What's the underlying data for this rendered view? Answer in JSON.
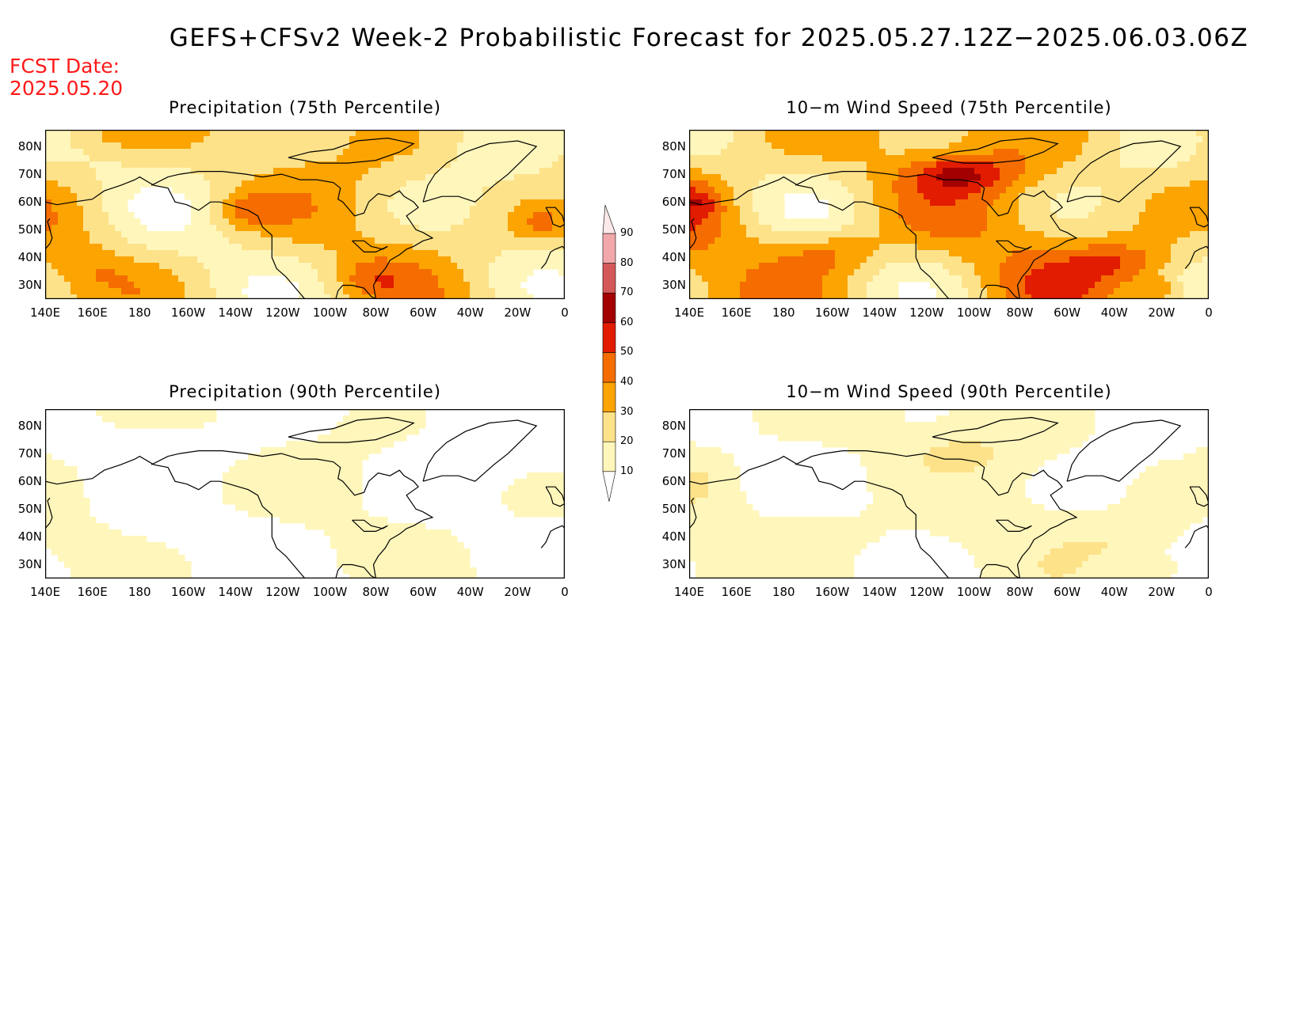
{
  "title": "GEFS+CFSv2 Week-2 Probabilistic Forecast for 2025.05.27.12Z−2025.06.03.06Z",
  "fcst_label": "FCST Date:",
  "fcst_date": "2025.05.20",
  "panels": [
    {
      "title": "Precipitation (75th Percentile)",
      "intensity": 1.0,
      "variant": "precip"
    },
    {
      "title": "10−m Wind Speed (75th Percentile)",
      "intensity": 1.2,
      "variant": "wind"
    },
    {
      "title": "Precipitation (90th Percentile)",
      "intensity": 0.35,
      "variant": "precip"
    },
    {
      "title": "10−m Wind Speed (90th Percentile)",
      "intensity": 0.45,
      "variant": "wind"
    }
  ],
  "lon_ticks": [
    "140E",
    "160E",
    "180",
    "160W",
    "140W",
    "120W",
    "100W",
    "80W",
    "60W",
    "40W",
    "20W",
    "0"
  ],
  "lat_ticks": [
    "80N",
    "70N",
    "60N",
    "50N",
    "40N",
    "30N"
  ],
  "colorbar": {
    "levels": [
      "10",
      "20",
      "30",
      "40",
      "50",
      "60",
      "70",
      "80",
      "90"
    ],
    "colors": [
      "#ffffff",
      "#fff6bb",
      "#fde28a",
      "#fba402",
      "#f56d00",
      "#e21c00",
      "#a30000",
      "#d55858",
      "#f2a8ab",
      "#fce8ea"
    ]
  }
}
